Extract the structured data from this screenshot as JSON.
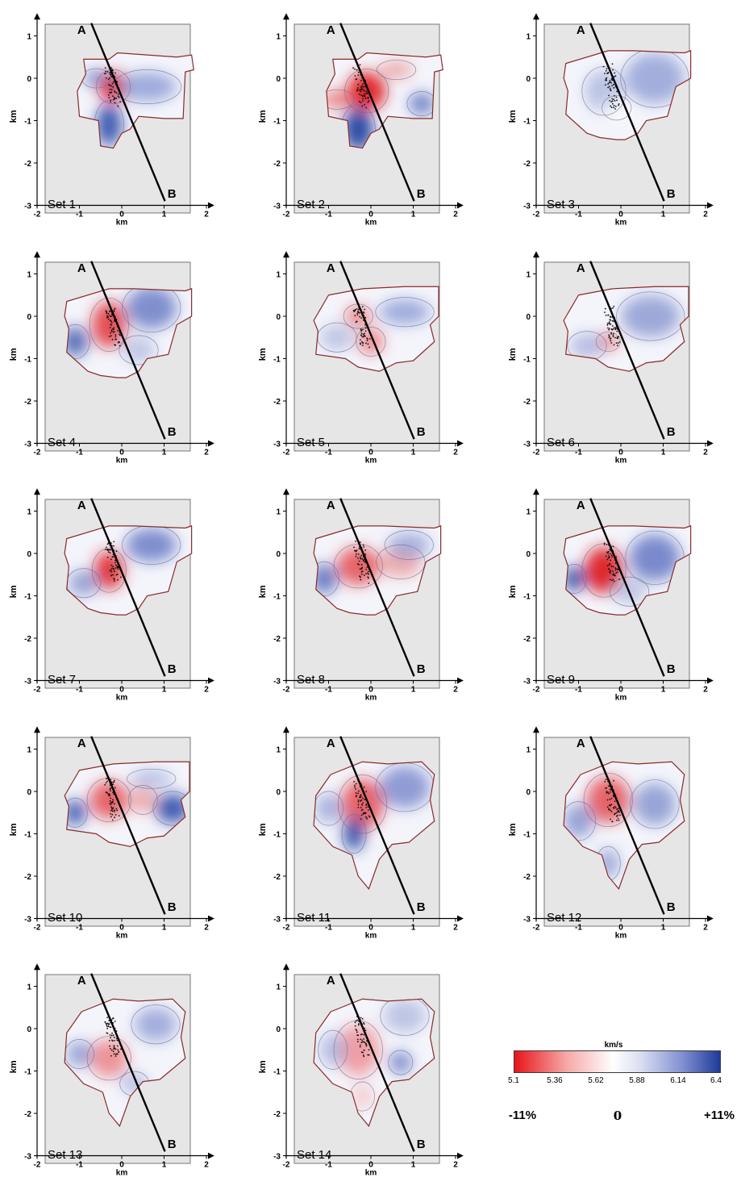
{
  "panels": [
    {
      "label": "Set 1",
      "variant": 0
    },
    {
      "label": "Set 2",
      "variant": 1
    },
    {
      "label": "Set 3",
      "variant": 2
    },
    {
      "label": "Set 4",
      "variant": 3
    },
    {
      "label": "Set 5",
      "variant": 4
    },
    {
      "label": "Set 6",
      "variant": 5
    },
    {
      "label": "Set 7",
      "variant": 6
    },
    {
      "label": "Set 8",
      "variant": 7
    },
    {
      "label": "Set 9",
      "variant": 8
    },
    {
      "label": "Set 10",
      "variant": 9
    },
    {
      "label": "Set 11",
      "variant": 10
    },
    {
      "label": "Set 12",
      "variant": 11
    },
    {
      "label": "Set 13",
      "variant": 12
    },
    {
      "label": "Set 14",
      "variant": 13
    }
  ],
  "axes": {
    "x_label": "km",
    "y_label": "km",
    "x_ticks": [
      "-2",
      "-1",
      "0",
      "1",
      "2"
    ],
    "y_ticks": [
      "1",
      "0",
      "-1",
      "-2",
      "-3"
    ],
    "xlim": [
      -2,
      2
    ],
    "ylim": [
      -3,
      1.3
    ]
  },
  "profile": {
    "start_label": "A",
    "end_label": "B"
  },
  "colorbar": {
    "units": "km/s",
    "ticks": [
      "5.1",
      "5.36",
      "5.62",
      "5.88",
      "6.14",
      "6.4"
    ],
    "range": [
      5.1,
      6.4
    ],
    "percent_labels": [
      "-11%",
      "0",
      "+11%"
    ],
    "colors": {
      "low": "#e8141b",
      "mid": "#ffffff",
      "high": "#1e3a9a"
    }
  },
  "colors": {
    "panel_background": "#e6e6e6",
    "outline": "#8a2a2a",
    "contour": "#6a6a8a",
    "profile_line": "#000000"
  }
}
